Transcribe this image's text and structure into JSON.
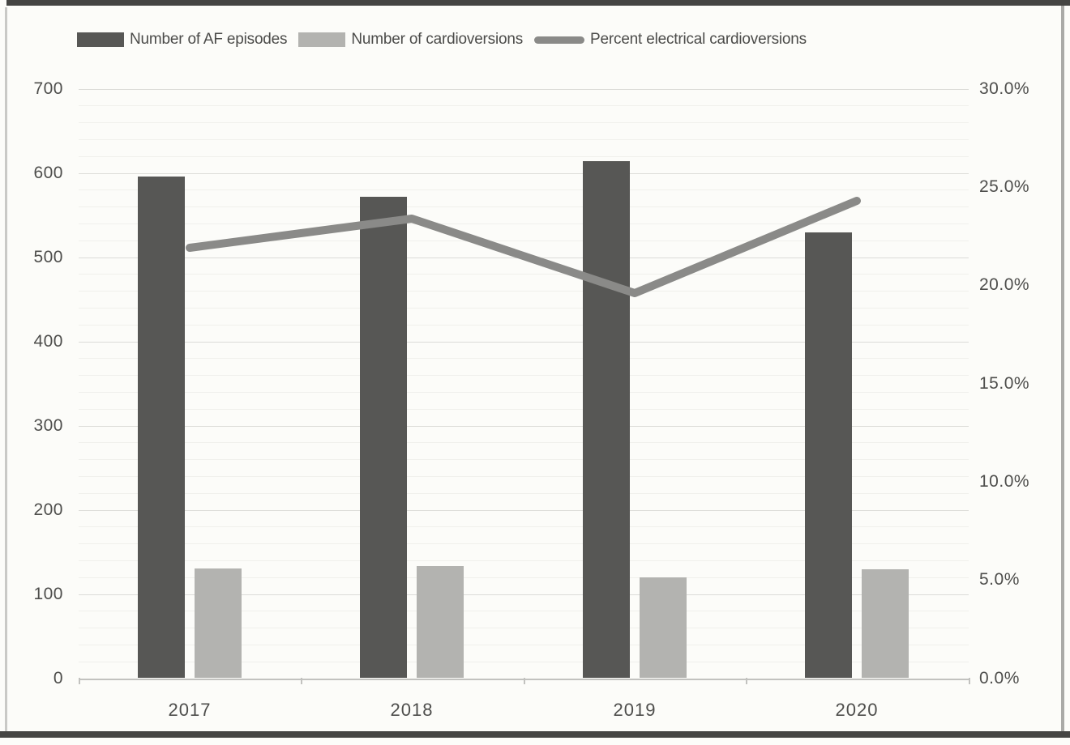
{
  "chart_data": {
    "type": "combo-bar-line",
    "categories": [
      "2017",
      "2018",
      "2019",
      "2020"
    ],
    "series": [
      {
        "name": "Number of AF episodes",
        "type": "bar",
        "axis": "left",
        "color": "#575755",
        "values": [
          596,
          572,
          614,
          529
        ]
      },
      {
        "name": "Number of cardioversions",
        "type": "bar",
        "axis": "left",
        "color": "#b3b3b0",
        "values": [
          130,
          133,
          120,
          129
        ]
      },
      {
        "name": "Percent electrical cardioversions",
        "type": "line",
        "axis": "right",
        "color": "#8a8a88",
        "values": [
          21.9,
          23.4,
          19.6,
          24.3
        ]
      }
    ],
    "left_axis": {
      "min": 0,
      "max": 700,
      "step": 100,
      "tick_labels": [
        "0",
        "100",
        "200",
        "300",
        "400",
        "500",
        "600",
        "700"
      ]
    },
    "right_axis": {
      "min": 0,
      "max": 30,
      "step": 5,
      "tick_labels": [
        "0.0%",
        "5.0%",
        "10.0%",
        "15.0%",
        "20.0%",
        "25.0%",
        "30.0%"
      ]
    },
    "grid": {
      "major": true,
      "minor": true,
      "minor_step": 20,
      "legend_position": "top"
    }
  },
  "colors": {
    "af_bar": "#575755",
    "cv_bar": "#b3b3b0",
    "line": "#8a8a88",
    "text": "#4e4e4c",
    "gridline_major": "#dcdcd8",
    "gridline_minor": "#f0f0ec",
    "axis_line": "#c2c2bf",
    "frame_dark": "#454543",
    "background": "#fcfcf9"
  }
}
